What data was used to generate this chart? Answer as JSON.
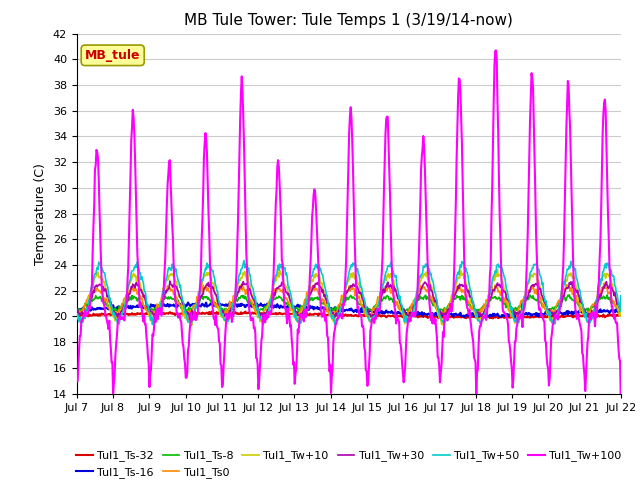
{
  "title": "MB Tule Tower: Tule Temps 1 (3/19/14-now)",
  "ylabel": "Temperature (C)",
  "ylim": [
    14,
    42
  ],
  "yticks": [
    14,
    16,
    18,
    20,
    22,
    24,
    26,
    28,
    30,
    32,
    34,
    36,
    38,
    40,
    42
  ],
  "x_labels": [
    "Jul 7",
    "Jul 8",
    "Jul 9",
    "Jul 10",
    "Jul 11",
    "Jul 12",
    "Jul 13",
    "Jul 14",
    "Jul 15",
    "Jul 16",
    "Jul 17",
    "Jul 18",
    "Jul 19",
    "Jul 20",
    "Jul 21",
    "Jul 22"
  ],
  "series": {
    "Tul1_Ts-32": {
      "color": "#dd0000",
      "lw": 1.5,
      "zorder": 3
    },
    "Tul1_Ts-16": {
      "color": "#0000dd",
      "lw": 1.5,
      "zorder": 4
    },
    "Tul1_Ts-8": {
      "color": "#00bb00",
      "lw": 1.2,
      "zorder": 5
    },
    "Tul1_Ts0": {
      "color": "#ff8800",
      "lw": 1.2,
      "zorder": 6
    },
    "Tul1_Tw+10": {
      "color": "#cccc00",
      "lw": 1.2,
      "zorder": 7
    },
    "Tul1_Tw+30": {
      "color": "#aa00aa",
      "lw": 1.2,
      "zorder": 8
    },
    "Tul1_Tw+50": {
      "color": "#00cccc",
      "lw": 1.2,
      "zorder": 9
    },
    "Tul1_Tw+100": {
      "color": "#ff00ff",
      "lw": 1.5,
      "zorder": 10
    }
  },
  "legend_box_color": "#ffff99",
  "legend_box_edge": "#999900",
  "background_color": "#ffffff",
  "grid_color": "#cccccc"
}
